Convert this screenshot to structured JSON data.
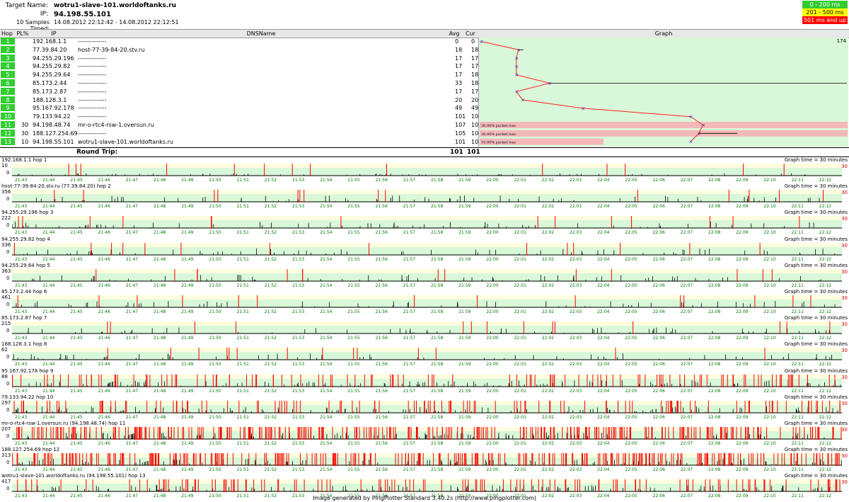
{
  "header": {
    "target_label": "Target Name:",
    "target_value": "wotru1-slave-101.worldoftanks.ru",
    "ip_label": "IP:",
    "ip_value": "94.198.55.101",
    "samples_label": "10 Samples Timed:",
    "samples_value": "14.08.2012 22:12:42 - 14.08.2012 22:12:51"
  },
  "legend": [
    {
      "label": "0 - 200 ms",
      "color": "#33cc33"
    },
    {
      "label": "201 - 500 ms",
      "color": "#ffff00"
    },
    {
      "label": "501 ms and up",
      "color": "#ff0000"
    }
  ],
  "columns": {
    "hop": "Hop",
    "pl": "PL%",
    "ip": "IP",
    "dns": "DNSName",
    "avg": "Avg",
    "cur": "Cur",
    "graph": "Graph"
  },
  "graph_max_label": "174",
  "rows": [
    {
      "hop": "1",
      "pl": "",
      "ip": "192.168.1.1",
      "dns": "--------------",
      "avg": "0",
      "cur": "0"
    },
    {
      "hop": "2",
      "pl": "",
      "ip": "77.39.84.20",
      "dns": "host-77-39-84-20.stv.ru",
      "avg": "18",
      "cur": "18"
    },
    {
      "hop": "3",
      "pl": "",
      "ip": "94.255.29.196",
      "dns": "--------------",
      "avg": "17",
      "cur": "17"
    },
    {
      "hop": "4",
      "pl": "",
      "ip": "94.255.29.82",
      "dns": "--------------",
      "avg": "17",
      "cur": "17"
    },
    {
      "hop": "5",
      "pl": "",
      "ip": "94.255.29.64",
      "dns": "--------------",
      "avg": "17",
      "cur": "18"
    },
    {
      "hop": "6",
      "pl": "",
      "ip": "85.173.2.44",
      "dns": "--------------",
      "avg": "33",
      "cur": "18"
    },
    {
      "hop": "7",
      "pl": "",
      "ip": "85.173.2.87",
      "dns": "--------------",
      "avg": "17",
      "cur": "17"
    },
    {
      "hop": "8",
      "pl": "",
      "ip": "188.128.3.1",
      "dns": "--------------",
      "avg": "20",
      "cur": "20"
    },
    {
      "hop": "9",
      "pl": "",
      "ip": "95.167.92.178",
      "dns": "--------------",
      "avg": "49",
      "cur": "49"
    },
    {
      "hop": "10",
      "pl": "",
      "ip": "79.133.94.22",
      "dns": "--------------",
      "avg": "101",
      "cur": "101"
    },
    {
      "hop": "11",
      "pl": "30",
      "ip": "94.198.48.74",
      "dns": "mr-o-rtc4-rsw-1.oversun.ru",
      "avg": "107",
      "cur": "108",
      "loss": "30,00% packet loss"
    },
    {
      "hop": "12",
      "pl": "30",
      "ip": "188.127.254.69",
      "dns": "--------------",
      "avg": "105",
      "cur": "103",
      "loss": "30,00% packet loss"
    },
    {
      "hop": "13",
      "pl": "10",
      "ip": "94.198.55.101",
      "dns": "wotru1-slave-101.worldoftanks.ru",
      "avg": "101",
      "cur": "101",
      "loss": "10,00% packet loss"
    }
  ],
  "round_trip": {
    "label": "Round Trip:",
    "avg": "101",
    "cur": "101"
  },
  "graph_time_label": "Graph time = 30 minutes",
  "red_label": "30",
  "time_ticks": [
    "21:43",
    "21:44",
    "21:45",
    "21:46",
    "21:47",
    "21:48",
    "21:49",
    "21:50",
    "21:51",
    "21:52",
    "21:53",
    "21:54",
    "21:55",
    "21:56",
    "21:57",
    "21:58",
    "21:59",
    "22:00",
    "22:01",
    "22:02",
    "22:03",
    "22:04",
    "22:05",
    "22:06",
    "22:07",
    "22:08",
    "22:09",
    "22:10",
    "22:11",
    "22:12"
  ],
  "strips": [
    {
      "title": "192.168.1.1 hop 1",
      "ymax": "10",
      "loss": "low"
    },
    {
      "title": "host-77-39-84-20.stv.ru (77.39.84.20) hop 2",
      "ymax": "356",
      "loss": "low"
    },
    {
      "title": "94.255.29.196 hop 3",
      "ymax": "222",
      "loss": "low"
    },
    {
      "title": "94.255.29.82 hop 4",
      "ymax": "336",
      "loss": "low"
    },
    {
      "title": "94.255.29.64 hop 5",
      "ymax": "363",
      "loss": "low"
    },
    {
      "title": "85.173.2.44 hop 6",
      "ymax": "461",
      "loss": "low"
    },
    {
      "title": "85.173.2.87 hop 7",
      "ymax": "215",
      "loss": "low"
    },
    {
      "title": "188.128.3.1 hop 8",
      "ymax": "62",
      "loss": "low"
    },
    {
      "title": "95.167.92.178 hop 9",
      "ymax": "88",
      "loss": "mid"
    },
    {
      "title": "79.133.94.22 hop 10",
      "ymax": "297",
      "loss": "mid"
    },
    {
      "title": "mr-o-rtc4-rsw-1.oversun.ru (94.198.48.74) hop 11",
      "ymax": "207",
      "loss": "high"
    },
    {
      "title": "188.127.254.69 hop 12",
      "ymax": "313",
      "loss": "high"
    },
    {
      "title": "wotru1-slave-101.worldoftanks.ru (94.198.55.101) hop 13",
      "ymax": "417",
      "loss": "mid"
    }
  ],
  "footer": "Image generated by PingPlotter Standard 3.40.2s (http://www.pingplotter.com)"
}
